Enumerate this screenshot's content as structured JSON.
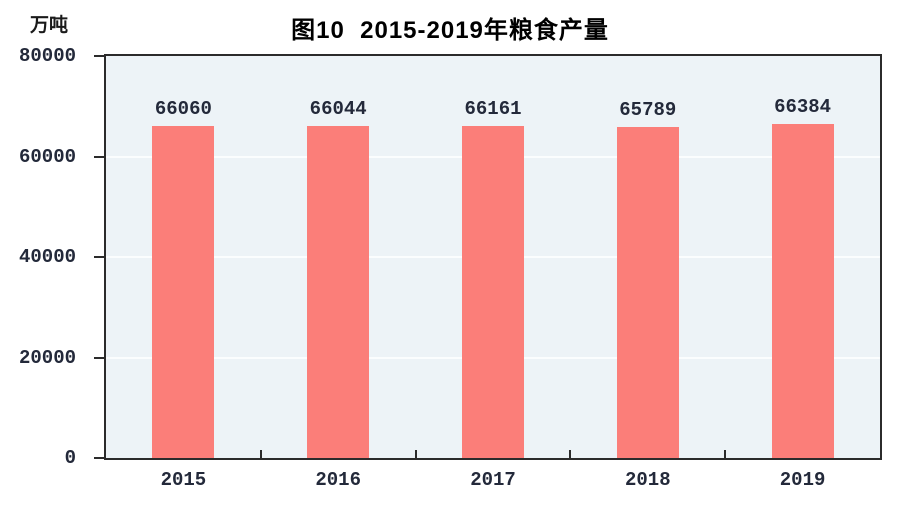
{
  "chart_data": {
    "type": "bar",
    "title": "图10  2015-2019年粮食产量",
    "unit_label": "万吨",
    "categories": [
      "2015",
      "2016",
      "2017",
      "2018",
      "2019"
    ],
    "values": [
      66060,
      66044,
      66161,
      65789,
      66384
    ],
    "value_labels": [
      "66060",
      "66044",
      "66161",
      "65789",
      "66384"
    ],
    "ylim": [
      0,
      80000
    ],
    "yticks": [
      0,
      20000,
      40000,
      60000,
      80000
    ],
    "ytick_labels": [
      "0",
      "20000",
      "40000",
      "60000",
      "80000"
    ],
    "xlabel": "",
    "ylabel": "万吨",
    "grid": "horizontal",
    "legend_position": "none",
    "colors": {
      "bar_fill": "#FB7E79",
      "plot_background": "#EDF3F7",
      "gridline": "#FBFDFE",
      "axis_frame": "#2B2B2B",
      "tick_mark": "#2B2B2B",
      "number_text": "#23293a",
      "title_text": "#000000"
    }
  }
}
